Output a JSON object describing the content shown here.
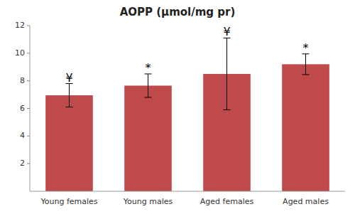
{
  "chart_data": {
    "type": "bar",
    "title": "AOPP (μmol/mg pr)",
    "categories": [
      "Young females",
      "Young males",
      "Aged females",
      "Aged males"
    ],
    "values": [
      6.95,
      7.65,
      8.5,
      9.2
    ],
    "errors": [
      0.85,
      0.85,
      2.6,
      0.75
    ],
    "color": "#c0494b",
    "ylim": [
      0,
      12
    ],
    "yticks": [
      2,
      4,
      6,
      8,
      10,
      12
    ],
    "annotations": [
      "¥",
      "*",
      "¥",
      "*"
    ]
  }
}
